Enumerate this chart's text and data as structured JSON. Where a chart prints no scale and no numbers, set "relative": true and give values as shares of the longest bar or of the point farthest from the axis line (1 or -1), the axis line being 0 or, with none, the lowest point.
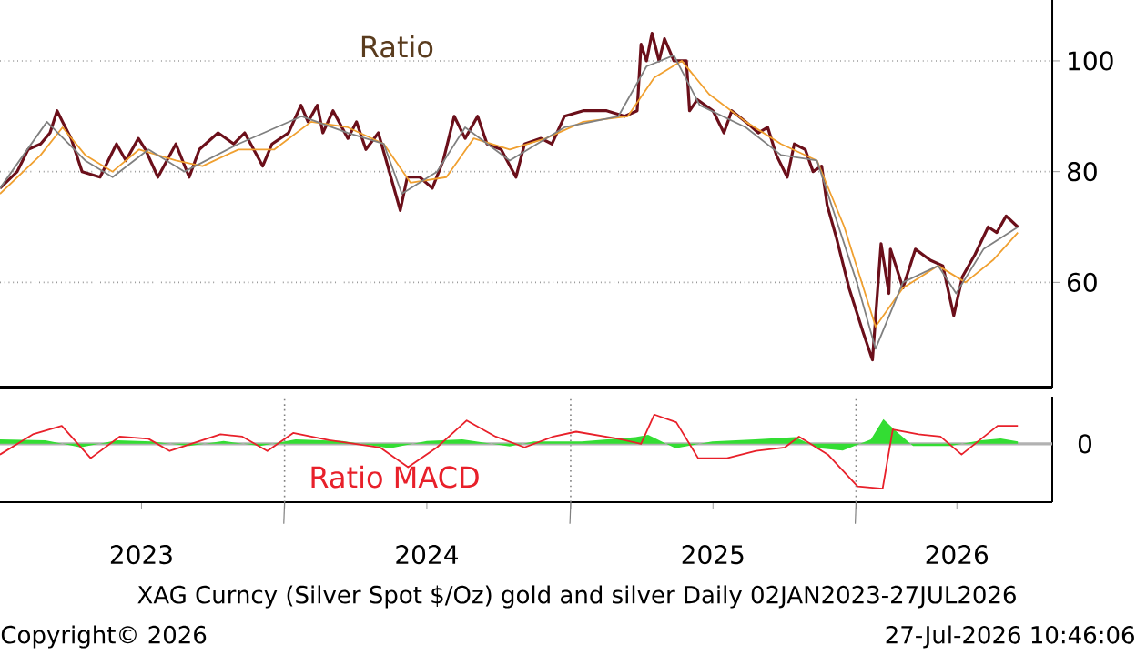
{
  "chart_data": [
    {
      "type": "line",
      "title": "Ratio",
      "xlim": [
        "2023-01-02",
        "2026-09-09"
      ],
      "ylim": [
        41,
        111
      ],
      "yticks": [
        60,
        80,
        100
      ],
      "grid": "y",
      "tick_labels": "y",
      "series": [
        {
          "color": "#6b0f1a",
          "x": [
            "2023-01-02",
            "2023-01-24",
            "2023-02-07",
            "2023-02-23",
            "2023-03-07",
            "2023-03-16",
            "2023-03-23",
            "2023-04-03",
            "2023-04-17",
            "2023-05-10",
            "2023-05-31",
            "2023-06-12",
            "2023-06-28",
            "2023-07-07",
            "2023-07-23",
            "2023-08-15",
            "2023-09-01",
            "2023-09-14",
            "2023-10-08",
            "2023-10-28",
            "2023-11-11",
            "2023-12-04",
            "2023-12-16",
            "2024-01-06",
            "2024-01-22",
            "2024-01-31",
            "2024-02-12",
            "2024-02-19",
            "2024-03-03",
            "2024-03-22",
            "2024-04-02",
            "2024-04-14",
            "2024-04-30",
            "2024-05-14",
            "2024-05-28",
            "2024-06-06",
            "2024-06-22",
            "2024-07-08",
            "2024-07-22",
            "2024-08-05",
            "2024-08-19",
            "2024-09-04",
            "2024-09-16",
            "2024-10-04",
            "2024-10-23",
            "2024-11-03",
            "2024-11-24",
            "2024-12-08",
            "2024-12-24",
            "2025-01-17",
            "2025-02-16",
            "2025-03-11",
            "2025-03-27",
            "2025-04-01",
            "2025-04-08",
            "2025-04-15",
            "2025-04-24",
            "2025-05-01",
            "2025-05-13",
            "2025-05-29",
            "2025-06-02",
            "2025-06-12",
            "2025-07-02",
            "2025-07-16",
            "2025-07-26",
            "2025-08-13",
            "2025-08-29",
            "2025-09-10",
            "2025-09-21",
            "2025-10-05",
            "2025-10-14",
            "2025-10-28",
            "2025-11-07",
            "2025-11-18",
            "2025-11-25",
            "2025-12-07",
            "2025-12-23",
            "2026-01-10",
            "2026-01-22",
            "2026-02-02",
            "2026-02-12",
            "2026-02-14",
            "2026-03-02",
            "2026-03-18",
            "2026-04-06",
            "2026-04-22",
            "2026-05-06",
            "2026-05-17",
            "2026-06-02",
            "2026-06-19",
            "2026-06-30",
            "2026-07-12",
            "2026-07-27"
          ],
          "values": [
            77,
            80,
            84,
            85,
            87,
            91,
            89,
            86,
            80,
            79,
            85,
            82,
            86,
            84,
            79,
            85,
            79,
            84,
            87,
            85,
            87,
            81,
            85,
            87,
            92,
            89,
            92,
            87,
            91,
            86,
            89,
            84,
            87,
            80,
            73,
            79,
            79,
            77,
            82,
            90,
            86,
            90,
            85,
            84,
            79,
            85,
            86,
            85,
            90,
            91,
            91,
            90,
            91,
            103,
            100,
            105,
            100,
            104,
            100,
            100,
            91,
            93,
            91,
            87,
            91,
            89,
            87,
            88,
            83,
            79,
            85,
            84,
            80,
            81,
            74,
            68,
            59,
            51,
            46,
            67,
            58,
            66,
            59,
            66,
            64,
            63,
            54,
            61,
            65,
            70,
            69,
            72,
            70
          ]
        },
        {
          "color": "#f0a030",
          "x": [
            "2023-01-02",
            "2023-02-23",
            "2023-03-23",
            "2023-04-21",
            "2023-05-26",
            "2023-06-29",
            "2023-08-15",
            "2023-09-18",
            "2023-11-03",
            "2023-12-19",
            "2024-02-04",
            "2024-03-22",
            "2024-05-07",
            "2024-06-10",
            "2024-07-26",
            "2024-08-30",
            "2024-10-15",
            "2024-11-30",
            "2025-01-17",
            "2025-03-15",
            "2025-04-18",
            "2025-05-23",
            "2025-06-27",
            "2025-08-13",
            "2025-09-27",
            "2025-11-12",
            "2025-12-17",
            "2026-01-26",
            "2026-03-02",
            "2026-04-16",
            "2026-05-21",
            "2026-06-25",
            "2026-07-27"
          ],
          "values": [
            76,
            83,
            88,
            83,
            80,
            84,
            82,
            81,
            84,
            84,
            89,
            88,
            85,
            78,
            79,
            86,
            84,
            86,
            89,
            90,
            97,
            100,
            94,
            89,
            85,
            82,
            70,
            52,
            59,
            63,
            60,
            64,
            69
          ]
        },
        {
          "color": "#808080",
          "x": [
            "2023-01-02",
            "2023-03-03",
            "2023-04-21",
            "2023-05-26",
            "2023-07-11",
            "2023-08-26",
            "2023-11-03",
            "2024-01-23",
            "2024-03-22",
            "2024-05-07",
            "2024-05-30",
            "2024-07-14",
            "2024-08-19",
            "2024-10-15",
            "2024-12-24",
            "2025-03-03",
            "2025-04-08",
            "2025-05-13",
            "2025-06-15",
            "2025-08-13",
            "2025-09-27",
            "2025-11-12",
            "2026-01-02",
            "2026-01-26",
            "2026-03-02",
            "2026-04-16",
            "2026-05-09",
            "2026-06-13",
            "2026-07-27"
          ],
          "values": [
            77,
            89,
            82,
            79,
            84,
            80,
            85,
            90,
            87,
            85,
            76,
            80,
            88,
            82,
            88,
            90,
            99,
            101,
            92,
            88,
            83,
            82,
            60,
            48,
            60,
            63,
            58,
            66,
            70
          ]
        }
      ]
    },
    {
      "type": "line",
      "title": "Ratio MACD",
      "relative": true,
      "xlim": [
        "2023-01-02",
        "2026-09-09"
      ],
      "grid": "x",
      "xticks": [
        {
          "value": "2023-07-02",
          "label": "2023"
        },
        {
          "value": "2024-01-01",
          "label": null
        },
        {
          "value": "2024-07-01",
          "label": "2024"
        },
        {
          "value": "2025-01-01",
          "label": null
        },
        {
          "value": "2025-07-02",
          "label": "2025"
        },
        {
          "value": "2026-01-01",
          "label": null
        },
        {
          "value": "2026-05-10",
          "label": "2026"
        }
      ],
      "annotations": [
        "0",
        "XAG Curncy (Silver Spot  $/Oz) gold and silver Daily 02JAN2023-27JUL2026",
        "Copyright© 2026",
        "27-Jul-2026 10:46:06"
      ],
      "series": [
        {
          "type": "area",
          "color": "#33dd33",
          "x": [
            "2023-01-02",
            "2023-03-01",
            "2023-04-15",
            "2023-06-01",
            "2023-07-15",
            "2023-09-01",
            "2023-10-15",
            "2023-12-01",
            "2024-01-15",
            "2024-03-15",
            "2024-05-15",
            "2024-07-01",
            "2024-08-15",
            "2024-10-15",
            "2024-11-15",
            "2025-01-15",
            "2025-03-25",
            "2025-04-10",
            "2025-05-15",
            "2025-07-01",
            "2025-08-25",
            "2025-10-15",
            "2025-11-15",
            "2025-12-15",
            "2026-01-20",
            "2026-02-05",
            "2026-02-20",
            "2026-03-15",
            "2026-05-01",
            "2026-06-10",
            "2026-07-05",
            "2026-07-27"
          ],
          "values": [
            0.1,
            0.08,
            -0.08,
            0.08,
            0.05,
            -0.05,
            0.06,
            -0.05,
            0.1,
            0.06,
            -0.1,
            0.06,
            0.1,
            -0.06,
            0.05,
            0.05,
            0.15,
            0.2,
            -0.1,
            0.05,
            0.1,
            0.15,
            -0.1,
            -0.15,
            0.1,
            0.55,
            0.3,
            -0.05,
            -0.05,
            0.08,
            0.12,
            0.05
          ]
        },
        {
          "color": "#e8202a",
          "x": [
            "2023-01-02",
            "2023-02-13",
            "2023-03-22",
            "2023-04-28",
            "2023-06-04",
            "2023-07-11",
            "2023-08-07",
            "2023-10-11",
            "2023-11-08",
            "2023-12-10",
            "2024-01-12",
            "2024-02-27",
            "2024-05-02",
            "2024-06-07",
            "2024-07-14",
            "2024-08-21",
            "2024-09-27",
            "2024-11-03",
            "2024-12-10",
            "2025-01-08",
            "2025-03-03",
            "2025-04-01",
            "2025-04-18",
            "2025-05-16",
            "2025-06-13",
            "2025-07-20",
            "2025-08-26",
            "2025-10-02",
            "2025-10-20",
            "2025-11-26",
            "2026-01-03",
            "2026-02-04",
            "2026-02-17",
            "2026-03-22",
            "2026-04-19",
            "2026-05-16",
            "2026-06-08",
            "2026-07-01",
            "2026-07-27"
          ],
          "values": [
            -0.24,
            0.21,
            0.4,
            -0.32,
            0.16,
            0.11,
            -0.16,
            0.21,
            0.16,
            -0.16,
            0.24,
            0.08,
            -0.08,
            -0.52,
            -0.08,
            0.52,
            0.16,
            -0.08,
            0.16,
            0.27,
            0.11,
            0,
            0.65,
            0.48,
            -0.32,
            -0.32,
            -0.16,
            -0.08,
            0.16,
            -0.24,
            -0.95,
            -1,
            0.32,
            0.21,
            0.16,
            -0.24,
            0.08,
            0.4,
            0.4
          ]
        }
      ]
    }
  ]
}
